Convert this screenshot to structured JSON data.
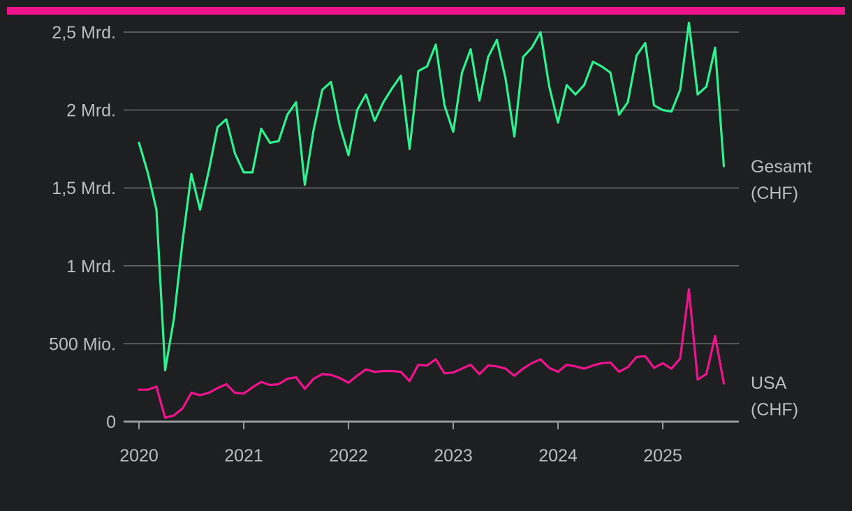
{
  "colors": {
    "background": "#1e1f21",
    "accent_bar": "#f0148c",
    "grid": "#6b6b6b",
    "axis": "#9a9a9a",
    "text": "#bdbdbd"
  },
  "chart_data": {
    "type": "line",
    "title": "",
    "xlabel": "",
    "ylabel": "",
    "ylim": [
      0,
      2500000000
    ],
    "xlim": [
      2020.0,
      2025.8
    ],
    "grid": true,
    "legend": "end-of-line labels (right)",
    "y_ticks": [
      {
        "value": 0,
        "label": "0"
      },
      {
        "value": 500000000,
        "label": "500 Mio."
      },
      {
        "value": 1000000000,
        "label": "1 Mrd."
      },
      {
        "value": 1500000000,
        "label": "1,5 Mrd."
      },
      {
        "value": 2000000000,
        "label": "2 Mrd."
      },
      {
        "value": 2500000000,
        "label": "2,5 Mrd."
      }
    ],
    "x_ticks": [
      {
        "value": 2020,
        "label": "2020"
      },
      {
        "value": 2021,
        "label": "2021"
      },
      {
        "value": 2022,
        "label": "2022"
      },
      {
        "value": 2023,
        "label": "2023"
      },
      {
        "value": 2024,
        "label": "2024"
      },
      {
        "value": 2025,
        "label": "2025"
      }
    ],
    "x": [
      "2020-01",
      "2020-02",
      "2020-03",
      "2020-04",
      "2020-05",
      "2020-06",
      "2020-07",
      "2020-08",
      "2020-09",
      "2020-10",
      "2020-11",
      "2020-12",
      "2021-01",
      "2021-02",
      "2021-03",
      "2021-04",
      "2021-05",
      "2021-06",
      "2021-07",
      "2021-08",
      "2021-09",
      "2021-10",
      "2021-11",
      "2021-12",
      "2022-01",
      "2022-02",
      "2022-03",
      "2022-04",
      "2022-05",
      "2022-06",
      "2022-07",
      "2022-08",
      "2022-09",
      "2022-10",
      "2022-11",
      "2022-12",
      "2023-01",
      "2023-02",
      "2023-03",
      "2023-04",
      "2023-05",
      "2023-06",
      "2023-07",
      "2023-08",
      "2023-09",
      "2023-10",
      "2023-11",
      "2023-12",
      "2024-01",
      "2024-02",
      "2024-03",
      "2024-04",
      "2024-05",
      "2024-06",
      "2024-07",
      "2024-08",
      "2024-09",
      "2024-10",
      "2024-11",
      "2024-12",
      "2025-01",
      "2025-02",
      "2025-03",
      "2025-04",
      "2025-05",
      "2025-06",
      "2025-07",
      "2025-08"
    ],
    "series": [
      {
        "name": "Gesamt (CHF)",
        "label_lines": [
          "Gesamt",
          "(CHF)"
        ],
        "color": "#2ef28f",
        "values": [
          1790000000,
          1600000000,
          1360000000,
          330000000,
          660000000,
          1160000000,
          1590000000,
          1360000000,
          1610000000,
          1890000000,
          1940000000,
          1720000000,
          1600000000,
          1600000000,
          1880000000,
          1790000000,
          1800000000,
          1970000000,
          2050000000,
          1520000000,
          1870000000,
          2130000000,
          2180000000,
          1900000000,
          1710000000,
          2000000000,
          2100000000,
          1930000000,
          2050000000,
          2140000000,
          2220000000,
          1750000000,
          2250000000,
          2280000000,
          2420000000,
          2030000000,
          1860000000,
          2240000000,
          2390000000,
          2060000000,
          2340000000,
          2450000000,
          2200000000,
          1830000000,
          2340000000,
          2400000000,
          2500000000,
          2150000000,
          1920000000,
          2160000000,
          2100000000,
          2160000000,
          2310000000,
          2280000000,
          2240000000,
          1970000000,
          2050000000,
          2350000000,
          2430000000,
          2030000000,
          2000000000,
          1990000000,
          2130000000,
          2560000000,
          2100000000,
          2150000000,
          2400000000,
          1640000000
        ]
      },
      {
        "name": "USA (CHF)",
        "label_lines": [
          "USA",
          "(CHF)"
        ],
        "color": "#f0148c",
        "values": [
          205000000,
          205000000,
          225000000,
          25000000,
          40000000,
          85000000,
          185000000,
          170000000,
          185000000,
          215000000,
          240000000,
          185000000,
          180000000,
          220000000,
          255000000,
          235000000,
          240000000,
          275000000,
          285000000,
          210000000,
          275000000,
          305000000,
          300000000,
          280000000,
          250000000,
          295000000,
          335000000,
          320000000,
          325000000,
          325000000,
          320000000,
          260000000,
          365000000,
          360000000,
          400000000,
          310000000,
          315000000,
          340000000,
          365000000,
          305000000,
          360000000,
          355000000,
          340000000,
          295000000,
          340000000,
          375000000,
          400000000,
          345000000,
          320000000,
          365000000,
          355000000,
          340000000,
          360000000,
          375000000,
          380000000,
          320000000,
          350000000,
          415000000,
          420000000,
          345000000,
          375000000,
          340000000,
          405000000,
          850000000,
          270000000,
          305000000,
          550000000,
          245000000
        ]
      }
    ]
  }
}
